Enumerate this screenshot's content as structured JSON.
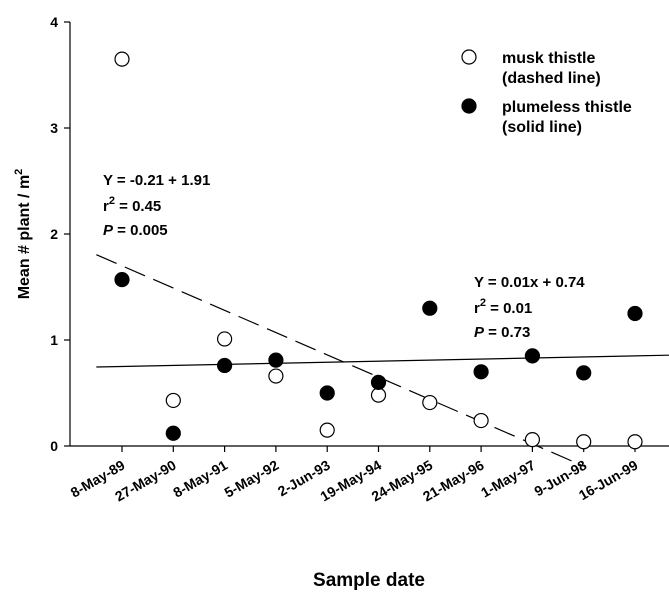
{
  "chart_data": {
    "type": "scatter",
    "xlabel": "Sample date",
    "ylabel": "Mean # plant / m",
    "ylabel_sup": "2",
    "ylim": [
      0,
      4
    ],
    "yticks": [
      "0",
      "1",
      "2",
      "3",
      "4"
    ],
    "categories": [
      "8-May-89",
      "27-May-90",
      "8-May-91",
      "5-May-92",
      "2-Jun-93",
      "19-May-94",
      "24-May-95",
      "21-May-96",
      "1-May-97",
      "9-Jun-98",
      "16-Jun-99"
    ],
    "series": [
      {
        "name": "musk thistle",
        "name_line2": "(dashed line)",
        "marker": "open-circle",
        "values": [
          3.65,
          0.43,
          1.01,
          0.66,
          0.15,
          0.48,
          0.41,
          0.24,
          0.06,
          0.04,
          0.04
        ],
        "fit": {
          "intercept": 1.91,
          "slope": -0.21,
          "line_style": "dashed",
          "until_x": 9
        }
      },
      {
        "name": "plumeless thistle",
        "name_line2": "(solid line)",
        "marker": "filled-circle",
        "values": [
          1.57,
          0.12,
          0.76,
          0.81,
          0.5,
          0.6,
          1.3,
          0.7,
          0.85,
          0.69,
          1.25
        ],
        "fit": {
          "intercept": 0.74,
          "slope": 0.01,
          "line_style": "solid"
        }
      }
    ],
    "annotations": [
      {
        "id": "musk",
        "line1": "Y = -0.21 + 1.91",
        "r2_label": "r",
        "r2_sup": "2",
        "r2_value": " = 0.45",
        "p_label": "P",
        "p_value": " = 0.005"
      },
      {
        "id": "plumeless",
        "line1": "Y = 0.01x + 0.74",
        "r2_label": "r",
        "r2_sup": "2",
        "r2_value": " = 0.01",
        "p_label": "P",
        "p_value": " = 0.73"
      }
    ],
    "legend_position": "top-right",
    "grid": false
  }
}
